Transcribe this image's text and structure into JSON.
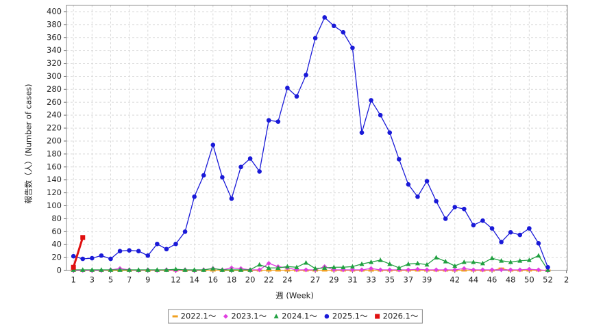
{
  "chart_data": {
    "type": "line",
    "x_label": "週 (Week)",
    "y_label": "報告数（人）(Number of cases)",
    "x": [
      1,
      2,
      3,
      4,
      5,
      6,
      7,
      8,
      9,
      10,
      11,
      12,
      13,
      14,
      15,
      16,
      17,
      18,
      19,
      20,
      21,
      22,
      23,
      24,
      25,
      26,
      27,
      28,
      29,
      30,
      31,
      32,
      33,
      34,
      35,
      36,
      37,
      38,
      39,
      40,
      41,
      42,
      43,
      44,
      45,
      46,
      47,
      48,
      49,
      50,
      51,
      52
    ],
    "xlim": [
      0.25,
      54.1
    ],
    "xticks": [
      1,
      3,
      5,
      7,
      9,
      12,
      14,
      16,
      18,
      20,
      22,
      24,
      27,
      29,
      31,
      33,
      35,
      37,
      39,
      42,
      44,
      46,
      48,
      50,
      52,
      {
        "value": 54,
        "label": "2"
      }
    ],
    "ylim": [
      0,
      410
    ],
    "yticks": [
      0,
      20,
      40,
      60,
      80,
      100,
      120,
      140,
      160,
      180,
      200,
      220,
      240,
      260,
      280,
      300,
      320,
      340,
      360,
      380,
      400
    ],
    "grid": true,
    "legend": "bottom",
    "series": [
      {
        "name": "2022.1〜",
        "color": "#f0a020",
        "marker": "dash",
        "values": [
          0,
          0,
          0,
          0,
          0,
          0,
          0,
          0,
          0,
          0,
          0,
          0,
          0,
          0,
          0,
          0,
          0,
          0,
          0,
          0,
          0,
          0,
          0,
          0,
          0,
          0,
          0,
          0,
          0,
          0,
          0,
          0,
          0,
          0,
          0,
          0,
          0,
          0,
          0,
          0,
          0,
          0,
          0,
          0,
          0,
          0,
          3,
          0,
          0,
          0,
          0,
          0
        ]
      },
      {
        "name": "2023.1〜",
        "color": "#e040e0",
        "marker": "diamond",
        "values": [
          0,
          0,
          0,
          0,
          1,
          3,
          1,
          0,
          1,
          0,
          1,
          0,
          1,
          0,
          1,
          3,
          1,
          4,
          3,
          1,
          1,
          11,
          6,
          4,
          1,
          1,
          1,
          6,
          1,
          1,
          1,
          1,
          3,
          1,
          1,
          1,
          1,
          2,
          1,
          1,
          1,
          1,
          3,
          1,
          1,
          1,
          1,
          1,
          1,
          2,
          1,
          0
        ]
      },
      {
        "name": "2024.1〜",
        "color": "#20a040",
        "marker": "triangle",
        "values": [
          1,
          1,
          1,
          1,
          1,
          1,
          1,
          1,
          1,
          1,
          1,
          2,
          1,
          1,
          1,
          3,
          1,
          1,
          1,
          1,
          9,
          4,
          4,
          6,
          5,
          12,
          3,
          4,
          5,
          5,
          6,
          10,
          13,
          16,
          10,
          4,
          10,
          11,
          9,
          20,
          14,
          7,
          13,
          13,
          11,
          19,
          15,
          13,
          15,
          16,
          23,
          1
        ]
      },
      {
        "name": "2025.1〜",
        "color": "#1a1ad8",
        "marker": "circle",
        "values": [
          22,
          18,
          19,
          23,
          18,
          30,
          31,
          30,
          23,
          41,
          33,
          41,
          60,
          114,
          147,
          194,
          144,
          111,
          160,
          173,
          153,
          232,
          230,
          282,
          269,
          302,
          359,
          391,
          378,
          368,
          344,
          213,
          263,
          240,
          213,
          172,
          133,
          114,
          138,
          107,
          80,
          98,
          95,
          70,
          77,
          65,
          44,
          59,
          55,
          65,
          42,
          5
        ]
      },
      {
        "name": "2026.1〜",
        "color": "#e01010",
        "marker": "square",
        "values": [
          5,
          51,
          null,
          null,
          null,
          null,
          null,
          null,
          null,
          null,
          null,
          null,
          null,
          null,
          null,
          null,
          null,
          null,
          null,
          null,
          null,
          null,
          null,
          null,
          null,
          null,
          null,
          null,
          null,
          null,
          null,
          null,
          null,
          null,
          null,
          null,
          null,
          null,
          null,
          null,
          null,
          null,
          null,
          null,
          null,
          null,
          null,
          null,
          null,
          null,
          null,
          null
        ]
      }
    ]
  }
}
